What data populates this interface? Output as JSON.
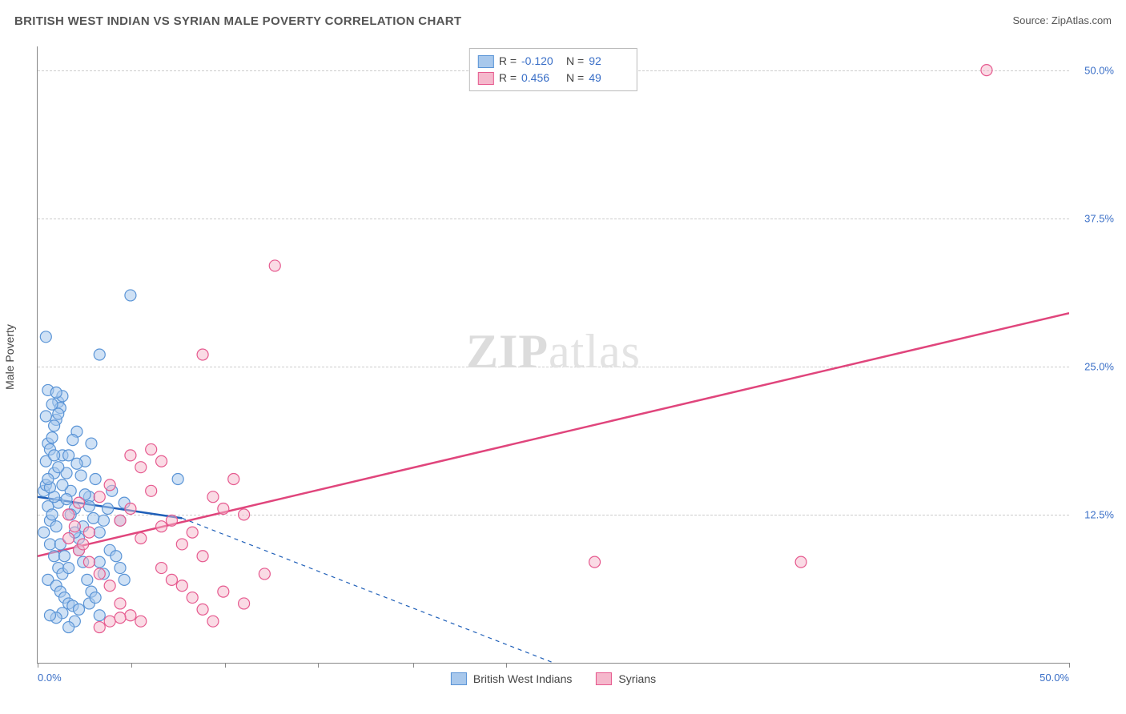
{
  "title": "BRITISH WEST INDIAN VS SYRIAN MALE POVERTY CORRELATION CHART",
  "source": "Source: ZipAtlas.com",
  "ylabel": "Male Poverty",
  "watermark_zip": "ZIP",
  "watermark_atlas": "atlas",
  "chart": {
    "type": "scatter",
    "background_color": "#ffffff",
    "grid_color": "#cccccc",
    "xlim": [
      0,
      50
    ],
    "ylim": [
      0,
      52
    ],
    "xticks": [
      0,
      4.55,
      9.1,
      13.6,
      18.2,
      22.7,
      50
    ],
    "xtick_labels": {
      "0": "0.0%",
      "50": "50.0%"
    },
    "yticks": [
      12.5,
      25.0,
      37.5,
      50.0
    ],
    "ytick_labels": [
      "12.5%",
      "25.0%",
      "37.5%",
      "50.0%"
    ],
    "marker_radius": 7,
    "marker_stroke_width": 1.2,
    "trend_line_width": 2.5,
    "dash_pattern": "5,5",
    "series": [
      {
        "name": "British West Indians",
        "color_fill": "#a8c8ec",
        "color_stroke": "#5a94d6",
        "fill_opacity": 0.55,
        "R": "-0.120",
        "N": "92",
        "trend_color": "#1f5fb8",
        "trend": {
          "x1": 0,
          "y1": 14.0,
          "x2": 7.0,
          "y2": 12.2,
          "x_solid_end": 7.0,
          "x_dash_end": 25.0,
          "y_dash_end": 0
        },
        "points": [
          [
            0.3,
            14.5
          ],
          [
            0.5,
            13.2
          ],
          [
            0.4,
            15.0
          ],
          [
            0.6,
            12.0
          ],
          [
            0.8,
            16.0
          ],
          [
            0.5,
            18.5
          ],
          [
            0.9,
            20.5
          ],
          [
            1.0,
            22.0
          ],
          [
            1.1,
            21.5
          ],
          [
            0.7,
            19.0
          ],
          [
            0.4,
            17.0
          ],
          [
            0.3,
            11.0
          ],
          [
            0.6,
            10.0
          ],
          [
            0.8,
            9.0
          ],
          [
            1.0,
            8.0
          ],
          [
            1.2,
            7.5
          ],
          [
            0.5,
            7.0
          ],
          [
            0.9,
            6.5
          ],
          [
            1.1,
            6.0
          ],
          [
            1.3,
            5.5
          ],
          [
            1.5,
            5.0
          ],
          [
            1.7,
            4.8
          ],
          [
            2.0,
            10.5
          ],
          [
            2.2,
            11.5
          ],
          [
            2.5,
            14.0
          ],
          [
            2.8,
            15.5
          ],
          [
            3.0,
            8.5
          ],
          [
            3.2,
            7.5
          ],
          [
            3.5,
            9.5
          ],
          [
            0.4,
            27.5
          ],
          [
            1.8,
            13.0
          ],
          [
            1.6,
            14.5
          ],
          [
            1.4,
            16.0
          ],
          [
            1.2,
            17.5
          ],
          [
            1.0,
            13.5
          ],
          [
            0.8,
            14.0
          ],
          [
            0.6,
            14.8
          ],
          [
            0.5,
            15.5
          ],
          [
            0.7,
            12.5
          ],
          [
            0.9,
            11.5
          ],
          [
            1.1,
            10.0
          ],
          [
            1.3,
            9.0
          ],
          [
            1.5,
            8.0
          ],
          [
            2.3,
            17.0
          ],
          [
            2.6,
            18.5
          ],
          [
            1.9,
            19.5
          ],
          [
            4.5,
            31.0
          ],
          [
            3.0,
            26.0
          ],
          [
            6.8,
            15.5
          ],
          [
            4.0,
            12.0
          ],
          [
            4.2,
            13.5
          ],
          [
            2.0,
            4.5
          ],
          [
            2.5,
            5.0
          ],
          [
            3.0,
            4.0
          ],
          [
            1.8,
            3.5
          ],
          [
            1.5,
            3.0
          ],
          [
            1.2,
            4.2
          ],
          [
            0.9,
            3.8
          ],
          [
            0.6,
            4.0
          ],
          [
            0.8,
            20.0
          ],
          [
            1.0,
            21.0
          ],
          [
            1.2,
            22.5
          ],
          [
            0.5,
            23.0
          ],
          [
            0.7,
            21.8
          ],
          [
            0.9,
            22.8
          ],
          [
            0.4,
            20.8
          ],
          [
            0.6,
            18.0
          ],
          [
            0.8,
            17.5
          ],
          [
            1.0,
            16.5
          ],
          [
            1.2,
            15.0
          ],
          [
            1.4,
            13.8
          ],
          [
            1.6,
            12.5
          ],
          [
            1.8,
            11.0
          ],
          [
            2.0,
            9.5
          ],
          [
            2.2,
            8.5
          ],
          [
            2.4,
            7.0
          ],
          [
            2.6,
            6.0
          ],
          [
            2.8,
            5.5
          ],
          [
            3.0,
            11.0
          ],
          [
            3.2,
            12.0
          ],
          [
            3.4,
            13.0
          ],
          [
            3.6,
            14.5
          ],
          [
            3.8,
            9.0
          ],
          [
            4.0,
            8.0
          ],
          [
            4.2,
            7.0
          ],
          [
            1.5,
            17.5
          ],
          [
            1.7,
            18.8
          ],
          [
            1.9,
            16.8
          ],
          [
            2.1,
            15.8
          ],
          [
            2.3,
            14.2
          ],
          [
            2.5,
            13.2
          ],
          [
            2.7,
            12.2
          ]
        ]
      },
      {
        "name": "Syrians",
        "color_fill": "#f5b8cc",
        "color_stroke": "#e65a8f",
        "fill_opacity": 0.5,
        "R": "0.456",
        "N": "49",
        "trend_color": "#e0457c",
        "trend": {
          "x1": 0,
          "y1": 9.0,
          "x2": 50,
          "y2": 29.5,
          "x_solid_end": 50
        },
        "points": [
          [
            1.5,
            12.5
          ],
          [
            2.0,
            13.5
          ],
          [
            2.5,
            11.0
          ],
          [
            3.0,
            14.0
          ],
          [
            3.5,
            15.0
          ],
          [
            4.0,
            12.0
          ],
          [
            4.5,
            13.0
          ],
          [
            5.0,
            10.5
          ],
          [
            5.5,
            14.5
          ],
          [
            6.0,
            8.0
          ],
          [
            6.5,
            7.0
          ],
          [
            7.0,
            6.5
          ],
          [
            7.5,
            5.5
          ],
          [
            8.0,
            4.5
          ],
          [
            2.5,
            8.5
          ],
          [
            3.0,
            7.5
          ],
          [
            3.5,
            6.5
          ],
          [
            4.0,
            5.0
          ],
          [
            4.5,
            4.0
          ],
          [
            5.0,
            3.5
          ],
          [
            9.5,
            15.5
          ],
          [
            10.0,
            12.5
          ],
          [
            9.0,
            13.0
          ],
          [
            8.5,
            14.0
          ],
          [
            8.0,
            9.0
          ],
          [
            11.5,
            33.5
          ],
          [
            8.0,
            26.0
          ],
          [
            5.5,
            18.0
          ],
          [
            6.0,
            17.0
          ],
          [
            5.0,
            16.5
          ],
          [
            4.5,
            17.5
          ],
          [
            27.0,
            8.5
          ],
          [
            37.0,
            8.5
          ],
          [
            46.0,
            50.0
          ],
          [
            3.0,
            3.0
          ],
          [
            3.5,
            3.5
          ],
          [
            4.0,
            3.8
          ],
          [
            6.0,
            11.5
          ],
          [
            6.5,
            12.0
          ],
          [
            7.0,
            10.0
          ],
          [
            7.5,
            11.0
          ],
          [
            2.0,
            9.5
          ],
          [
            2.2,
            10.0
          ],
          [
            1.8,
            11.5
          ],
          [
            1.5,
            10.5
          ],
          [
            9.0,
            6.0
          ],
          [
            10.0,
            5.0
          ],
          [
            11.0,
            7.5
          ],
          [
            8.5,
            3.5
          ]
        ]
      }
    ]
  },
  "legend_top_label_R": "R =",
  "legend_top_label_N": "N =",
  "colors": {
    "axis": "#888888",
    "text": "#555555",
    "tick_text": "#3a6fc7"
  }
}
